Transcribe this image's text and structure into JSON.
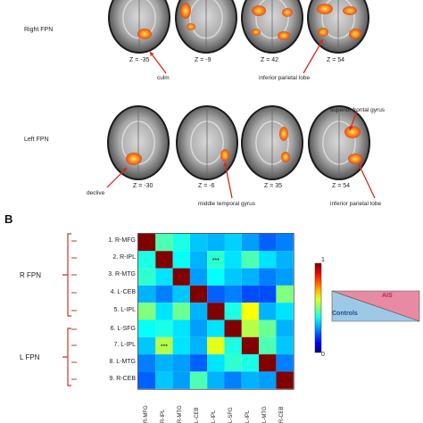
{
  "panel_a": {
    "rows": [
      {
        "label": "Right FPN",
        "slices": [
          {
            "z": "Z = -35",
            "annotation": "culm"
          },
          {
            "z": "Z = -9",
            "annotation": ""
          },
          {
            "z": "Z = 42",
            "annotation": "inferior parietal lobe"
          },
          {
            "z": "Z = 54",
            "annotation": ""
          }
        ]
      },
      {
        "label": "Left FPN",
        "slices": [
          {
            "z": "Z = -30",
            "annotation": "declive"
          },
          {
            "z": "Z = -6",
            "annotation": "middle temporal gyrus"
          },
          {
            "z": "Z = 35",
            "annotation": ""
          },
          {
            "z": "Z = 54",
            "annotation": "superior frontal gyrus"
          }
        ],
        "extra_annotation": "inferior parietal lobe"
      }
    ]
  },
  "panel_b": {
    "letter": "B",
    "groups": [
      {
        "label": "R FPN",
        "rois": [
          "1. R-MFG",
          "2. R-IPL",
          "3. R-MTG",
          "4. L-CEB",
          "5. L-IPL"
        ]
      },
      {
        "label": "L FPN",
        "rois": [
          "6. L-SFG",
          "7. L-IPL",
          "8. L-MTG",
          "9. R-CEB"
        ]
      }
    ],
    "x_ticks": [
      "R-MFG",
      "R-IPL",
      "R-MTG",
      "L-CEB",
      "L-IPL",
      "L-SFG",
      "L-IPL",
      "L-MTG",
      "R-CEB"
    ],
    "significance_mark": "***",
    "colorbar": {
      "max": "1",
      "min": "0"
    },
    "legend": {
      "upper": "AIS",
      "lower": "Controls",
      "upper_color": "#e88aa3",
      "lower_color": "#9ec9e6"
    }
  },
  "chart_data": {
    "type": "heatmap",
    "title": "",
    "xlabel": "",
    "ylabel": "",
    "rows": [
      "1. R-MFG",
      "2. R-IPL",
      "3. R-MTG",
      "4. L-CEB",
      "5. L-IPL",
      "6. L-SFG",
      "7. L-IPL",
      "8. L-MTG",
      "9. R-CEB"
    ],
    "columns": [
      "R-MFG",
      "R-IPL",
      "R-MTG",
      "L-CEB",
      "L-IPL",
      "L-SFG",
      "L-IPL",
      "L-MTG",
      "R-CEB"
    ],
    "range": [
      0,
      1
    ],
    "values": [
      [
        1.0,
        0.45,
        0.4,
        0.32,
        0.3,
        0.33,
        0.28,
        0.22,
        0.25
      ],
      [
        0.4,
        1.0,
        0.38,
        0.3,
        0.42,
        0.35,
        0.45,
        0.35,
        0.3
      ],
      [
        0.42,
        0.35,
        1.0,
        0.28,
        0.38,
        0.32,
        0.3,
        0.25,
        0.28
      ],
      [
        0.3,
        0.25,
        0.32,
        1.0,
        0.22,
        0.25,
        0.2,
        0.2,
        0.5
      ],
      [
        0.5,
        0.35,
        0.48,
        0.3,
        1.0,
        0.4,
        0.62,
        0.3,
        0.35
      ],
      [
        0.38,
        0.4,
        0.35,
        0.28,
        0.35,
        1.0,
        0.55,
        0.48,
        0.3
      ],
      [
        0.32,
        0.55,
        0.35,
        0.3,
        0.6,
        0.4,
        1.0,
        0.45,
        0.32
      ],
      [
        0.25,
        0.3,
        0.28,
        0.22,
        0.35,
        0.42,
        0.4,
        1.0,
        0.25
      ],
      [
        0.22,
        0.32,
        0.28,
        0.45,
        0.3,
        0.25,
        0.3,
        0.28,
        1.0
      ]
    ],
    "annotations": [
      {
        "row": "2. R-IPL",
        "column": "L-IPL",
        "text": "***"
      },
      {
        "row": "7. L-IPL",
        "column": "R-IPL",
        "text": "***"
      }
    ]
  }
}
